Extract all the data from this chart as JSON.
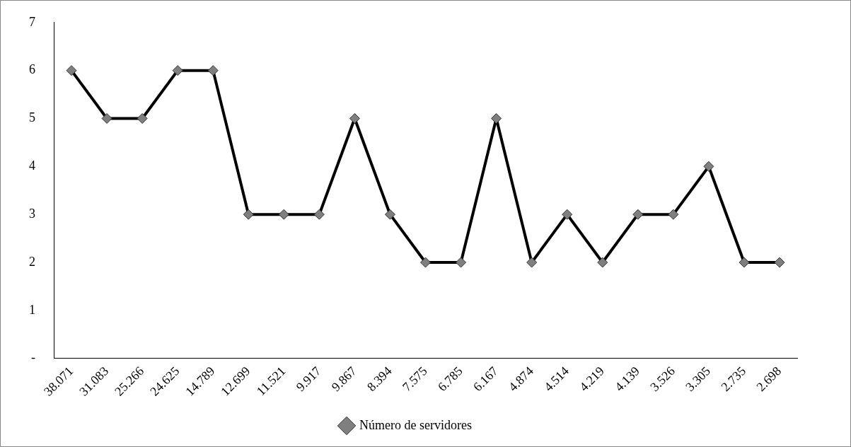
{
  "chart_data": {
    "type": "line",
    "categories": [
      "38.071",
      "31.083",
      "25.266",
      "24.625",
      "14.789",
      "12.699",
      "11.521",
      "9.917",
      "9.867",
      "8.394",
      "7.575",
      "6.785",
      "6.167",
      "4.874",
      "4.514",
      "4.219",
      "4.139",
      "3.526",
      "3.305",
      "2.735",
      "2.698"
    ],
    "series": [
      {
        "name": "Número de servidores",
        "color": "#000000",
        "values": [
          6,
          5,
          5,
          6,
          6,
          3,
          3,
          3,
          5,
          3,
          2,
          2,
          5,
          2,
          3,
          2,
          3,
          3,
          4,
          2,
          2
        ]
      }
    ],
    "ylim": [
      0,
      7
    ],
    "yticks": [
      {
        "value": 0,
        "label": "-"
      },
      1,
      2,
      3,
      4,
      5,
      6,
      7
    ],
    "grid": false,
    "legend": "bottom",
    "marker": "diamond",
    "line_style": "solid"
  }
}
